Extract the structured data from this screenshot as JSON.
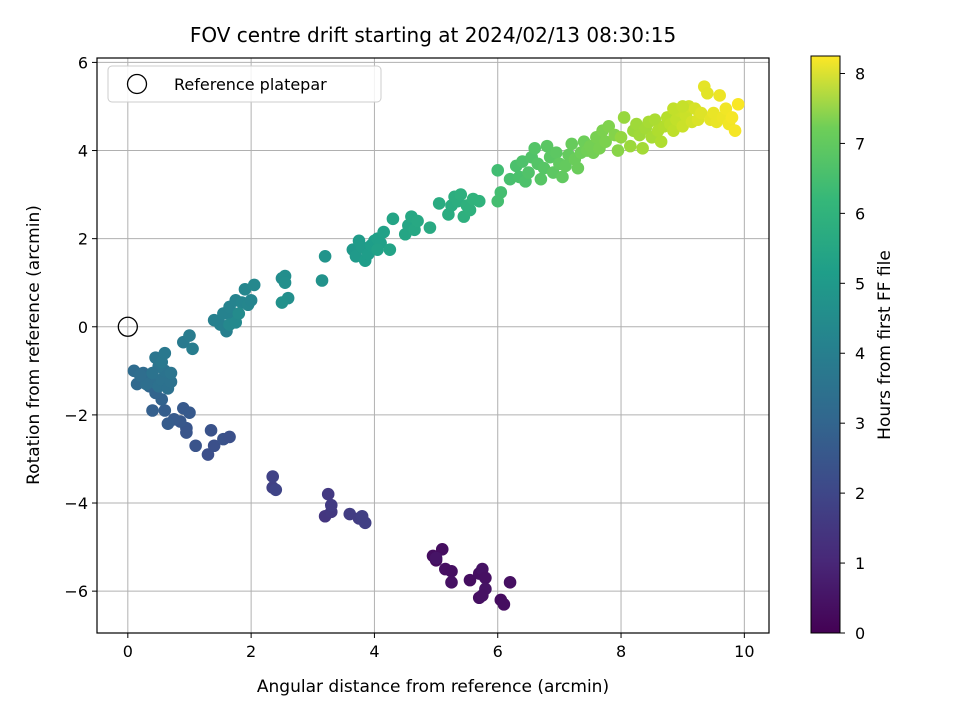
{
  "chart_data": {
    "type": "scatter",
    "title": "FOV centre drift starting at 2024/02/13 08:30:15",
    "xlabel": "Angular distance from reference (arcmin)",
    "ylabel": "Rotation from reference (arcmin)",
    "xlim": [
      -0.5,
      10.4
    ],
    "ylim": [
      -6.95,
      6.1
    ],
    "xticks": [
      0,
      2,
      4,
      6,
      8,
      10
    ],
    "yticks": [
      -6,
      -4,
      -2,
      0,
      2,
      4,
      6
    ],
    "grid": true,
    "legend": {
      "placement": "upper-left",
      "label": "Reference platepar"
    },
    "reference_point": {
      "x": 0,
      "y": 0
    },
    "colorbar": {
      "label": "Hours from first FF file",
      "colormap": "viridis",
      "range": [
        0,
        8.25
      ],
      "ticks": [
        0,
        1,
        2,
        3,
        4,
        5,
        6,
        7,
        8
      ]
    },
    "series": [
      {
        "points": [
          [
            5.0,
            -5.3,
            0.25
          ],
          [
            5.1,
            -5.05,
            0.3
          ],
          [
            4.95,
            -5.2,
            0.28
          ],
          [
            5.15,
            -5.5,
            0.35
          ],
          [
            5.25,
            -5.55,
            0.32
          ],
          [
            5.25,
            -5.8,
            0.38
          ],
          [
            5.55,
            -5.75,
            0.3
          ],
          [
            5.7,
            -5.6,
            0.33
          ],
          [
            5.75,
            -5.5,
            0.4
          ],
          [
            5.8,
            -5.7,
            0.36
          ],
          [
            5.8,
            -5.95,
            0.42
          ],
          [
            5.7,
            -6.15,
            0.34
          ],
          [
            5.75,
            -6.1,
            0.38
          ],
          [
            6.05,
            -6.2,
            0.27
          ],
          [
            6.1,
            -6.3,
            0.3
          ],
          [
            6.2,
            -5.8,
            0.35
          ],
          [
            5.0,
            -5.25,
            0.45
          ],
          [
            3.2,
            -4.3,
            1.3
          ],
          [
            3.3,
            -4.2,
            1.35
          ],
          [
            3.25,
            -3.8,
            1.4
          ],
          [
            3.3,
            -4.05,
            1.45
          ],
          [
            3.6,
            -4.25,
            1.5
          ],
          [
            3.75,
            -4.35,
            1.5
          ],
          [
            3.85,
            -4.45,
            1.55
          ],
          [
            3.8,
            -4.3,
            1.55
          ],
          [
            2.35,
            -3.65,
            1.6
          ],
          [
            2.35,
            -3.4,
            1.65
          ],
          [
            2.4,
            -3.7,
            1.7
          ],
          [
            1.3,
            -2.9,
            2.0
          ],
          [
            1.4,
            -2.7,
            2.05
          ],
          [
            1.55,
            -2.55,
            2.1
          ],
          [
            1.65,
            -2.5,
            2.05
          ],
          [
            1.35,
            -2.35,
            2.1
          ],
          [
            1.1,
            -2.7,
            2.15
          ],
          [
            0.95,
            -2.3,
            2.2
          ],
          [
            0.85,
            -2.15,
            2.25
          ],
          [
            0.95,
            -2.4,
            2.2
          ],
          [
            0.9,
            -1.85,
            2.3
          ],
          [
            1.0,
            -1.95,
            2.3
          ],
          [
            0.75,
            -2.1,
            2.35
          ],
          [
            0.65,
            -2.2,
            2.4
          ],
          [
            0.6,
            -1.9,
            2.45
          ],
          [
            0.4,
            -1.9,
            2.5
          ],
          [
            0.55,
            -1.65,
            2.6
          ],
          [
            0.45,
            -1.5,
            2.65
          ],
          [
            0.35,
            -1.35,
            2.7
          ],
          [
            0.2,
            -1.25,
            2.75
          ],
          [
            0.15,
            -1.3,
            2.8
          ],
          [
            0.25,
            -1.05,
            2.85
          ],
          [
            0.1,
            -1.0,
            2.9
          ],
          [
            0.3,
            -1.15,
            2.9
          ],
          [
            0.4,
            -1.25,
            3.0
          ],
          [
            0.5,
            -1.35,
            3.05
          ],
          [
            0.55,
            -1.2,
            3.1
          ],
          [
            0.65,
            -1.4,
            3.05
          ],
          [
            0.7,
            -1.25,
            3.1
          ],
          [
            0.6,
            -1.0,
            3.15
          ],
          [
            0.5,
            -0.9,
            3.2
          ],
          [
            0.45,
            -0.7,
            3.25
          ],
          [
            0.55,
            -0.8,
            3.3
          ],
          [
            0.6,
            -0.6,
            3.3
          ],
          [
            0.7,
            -1.05,
            3.2
          ],
          [
            0.4,
            -1.05,
            3.15
          ],
          [
            0.3,
            -1.3,
            3.0
          ],
          [
            0.2,
            -1.1,
            2.95
          ],
          [
            0.9,
            -0.35,
            3.4
          ],
          [
            1.0,
            -0.2,
            3.45
          ],
          [
            1.05,
            -0.5,
            3.5
          ],
          [
            1.6,
            -0.1,
            3.55
          ],
          [
            1.5,
            0.05,
            3.6
          ],
          [
            1.4,
            0.15,
            3.6
          ],
          [
            1.55,
            0.3,
            3.65
          ],
          [
            1.7,
            0.2,
            3.65
          ],
          [
            1.65,
            0.45,
            3.7
          ],
          [
            1.75,
            0.6,
            3.7
          ],
          [
            1.85,
            0.55,
            3.75
          ],
          [
            1.95,
            0.5,
            3.8
          ],
          [
            2.0,
            0.6,
            3.75
          ],
          [
            1.9,
            0.85,
            3.8
          ],
          [
            2.05,
            0.95,
            3.85
          ],
          [
            1.65,
            0.05,
            3.85
          ],
          [
            1.75,
            0.1,
            3.9
          ],
          [
            1.8,
            0.3,
            3.95
          ],
          [
            2.5,
            1.1,
            4.0
          ],
          [
            2.55,
            1.15,
            4.05
          ],
          [
            2.55,
            1.0,
            4.1
          ],
          [
            2.6,
            0.65,
            4.1
          ],
          [
            2.5,
            0.55,
            4.15
          ],
          [
            3.15,
            1.05,
            4.2
          ],
          [
            3.2,
            1.6,
            4.25
          ],
          [
            3.65,
            1.75,
            4.4
          ],
          [
            3.7,
            1.6,
            4.45
          ],
          [
            3.75,
            1.95,
            4.5
          ],
          [
            3.8,
            1.8,
            4.5
          ],
          [
            3.85,
            1.5,
            4.55
          ],
          [
            3.9,
            1.65,
            4.55
          ],
          [
            3.95,
            1.85,
            4.6
          ],
          [
            4.0,
            1.95,
            4.6
          ],
          [
            4.05,
            2.0,
            4.65
          ],
          [
            4.1,
            1.9,
            4.65
          ],
          [
            4.15,
            2.15,
            4.7
          ],
          [
            4.05,
            1.75,
            4.7
          ],
          [
            4.25,
            1.75,
            4.75
          ],
          [
            4.3,
            2.45,
            4.8
          ],
          [
            4.5,
            2.1,
            4.85
          ],
          [
            4.55,
            2.3,
            4.85
          ],
          [
            4.6,
            2.5,
            4.9
          ],
          [
            4.65,
            2.2,
            4.9
          ],
          [
            4.7,
            2.4,
            4.95
          ],
          [
            4.9,
            2.25,
            5.0
          ],
          [
            5.05,
            2.8,
            5.05
          ],
          [
            5.2,
            2.55,
            5.1
          ],
          [
            5.25,
            2.75,
            5.1
          ],
          [
            5.3,
            2.95,
            5.15
          ],
          [
            5.35,
            2.85,
            5.15
          ],
          [
            5.4,
            3.0,
            5.2
          ],
          [
            5.45,
            2.5,
            5.2
          ],
          [
            5.5,
            2.75,
            5.25
          ],
          [
            5.55,
            2.65,
            5.25
          ],
          [
            5.6,
            2.9,
            5.3
          ],
          [
            5.7,
            2.85,
            5.3
          ],
          [
            6.0,
            3.55,
            5.7
          ],
          [
            6.05,
            3.05,
            5.75
          ],
          [
            6.0,
            2.85,
            5.75
          ],
          [
            6.2,
            3.35,
            5.8
          ],
          [
            6.3,
            3.65,
            5.85
          ],
          [
            6.35,
            3.4,
            5.85
          ],
          [
            6.4,
            3.75,
            5.9
          ],
          [
            6.45,
            3.3,
            5.9
          ],
          [
            6.5,
            3.5,
            5.95
          ],
          [
            6.55,
            3.85,
            5.95
          ],
          [
            6.6,
            4.05,
            6.0
          ],
          [
            6.65,
            3.7,
            6.0
          ],
          [
            6.7,
            3.35,
            6.05
          ],
          [
            6.75,
            3.6,
            6.05
          ],
          [
            6.8,
            4.1,
            6.1
          ],
          [
            6.85,
            3.85,
            6.1
          ],
          [
            6.9,
            3.5,
            6.15
          ],
          [
            6.95,
            3.95,
            6.15
          ],
          [
            7.0,
            3.7,
            6.2
          ],
          [
            7.05,
            3.4,
            6.2
          ],
          [
            7.1,
            3.65,
            6.25
          ],
          [
            7.15,
            3.9,
            6.25
          ],
          [
            7.2,
            4.15,
            6.3
          ],
          [
            7.25,
            3.8,
            6.35
          ],
          [
            7.3,
            3.6,
            6.35
          ],
          [
            7.35,
            3.95,
            6.4
          ],
          [
            7.4,
            4.2,
            6.4
          ],
          [
            7.45,
            4.0,
            6.45
          ],
          [
            7.5,
            4.1,
            6.5
          ],
          [
            7.55,
            3.95,
            6.5
          ],
          [
            7.6,
            4.3,
            6.55
          ],
          [
            7.65,
            4.05,
            6.55
          ],
          [
            7.7,
            4.45,
            6.6
          ],
          [
            7.75,
            4.2,
            6.6
          ],
          [
            7.8,
            4.55,
            6.65
          ],
          [
            7.9,
            4.35,
            6.7
          ],
          [
            7.95,
            4.0,
            6.75
          ],
          [
            8.0,
            4.3,
            6.9
          ],
          [
            8.05,
            4.75,
            6.95
          ],
          [
            8.15,
            4.1,
            7.0
          ],
          [
            8.2,
            4.45,
            7.0
          ],
          [
            8.25,
            4.6,
            7.05
          ],
          [
            8.3,
            4.35,
            7.05
          ],
          [
            8.35,
            4.05,
            7.1
          ],
          [
            8.4,
            4.5,
            7.1
          ],
          [
            8.45,
            4.65,
            7.15
          ],
          [
            8.5,
            4.3,
            7.15
          ],
          [
            8.55,
            4.7,
            7.2
          ],
          [
            8.6,
            4.45,
            7.25
          ],
          [
            8.65,
            4.2,
            7.25
          ],
          [
            8.7,
            4.55,
            7.3
          ],
          [
            8.75,
            4.75,
            7.35
          ],
          [
            8.8,
            4.6,
            7.4
          ],
          [
            8.85,
            4.45,
            7.45
          ],
          [
            8.9,
            4.7,
            7.5
          ],
          [
            8.95,
            4.9,
            7.55
          ],
          [
            9.0,
            4.55,
            7.6
          ],
          [
            9.05,
            4.8,
            7.6
          ],
          [
            9.1,
            5.0,
            7.65
          ],
          [
            9.15,
            4.65,
            7.7
          ],
          [
            9.2,
            4.95,
            7.75
          ],
          [
            9.25,
            4.7,
            7.8
          ],
          [
            9.3,
            4.85,
            7.85
          ],
          [
            9.35,
            5.45,
            7.95
          ],
          [
            9.4,
            5.3,
            7.9
          ],
          [
            9.45,
            4.7,
            7.95
          ],
          [
            9.5,
            4.85,
            8.0
          ],
          [
            9.55,
            4.65,
            8.0
          ],
          [
            9.6,
            5.25,
            8.05
          ],
          [
            9.65,
            4.75,
            8.05
          ],
          [
            9.7,
            4.95,
            8.1
          ],
          [
            9.75,
            4.6,
            8.1
          ],
          [
            9.8,
            4.75,
            8.15
          ],
          [
            9.85,
            4.45,
            8.15
          ],
          [
            9.9,
            5.05,
            8.2
          ],
          [
            8.85,
            4.95,
            7.5
          ],
          [
            9.0,
            5.0,
            7.55
          ]
        ]
      }
    ]
  }
}
